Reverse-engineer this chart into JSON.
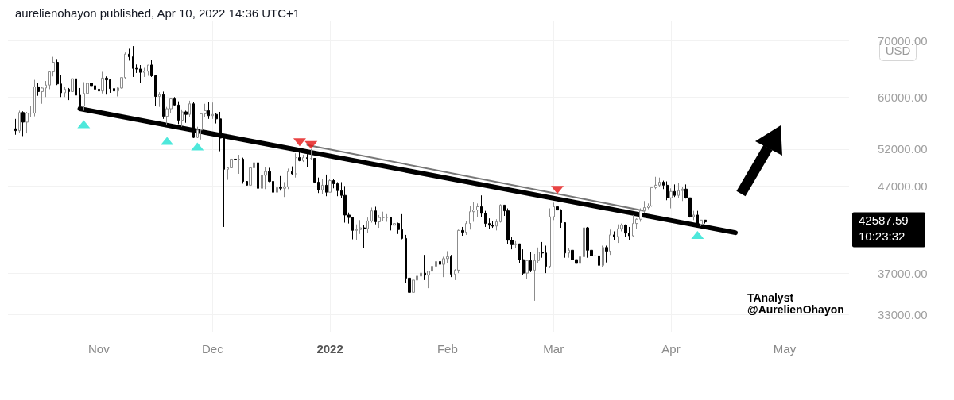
{
  "chart_data": {
    "type": "candlestick",
    "title": "aurelienohayon published, Apr 10, 2022 14:36 UTC+1",
    "ylabel": "USD",
    "annotations": [
      "TAnalyst",
      "@AurelienOhayon",
      "42587.59",
      "10:23:32"
    ],
    "log": "y",
    "grid": true,
    "xlim": [
      "2021-10-08",
      "2022-05-18"
    ],
    "xticks": [
      {
        "value": "2021-11-01",
        "label": "Nov"
      },
      {
        "value": "2021-12-01",
        "label": "Dec"
      },
      {
        "value": "2022-01-01",
        "label": "2022"
      },
      {
        "value": "2022-02-01",
        "label": "Feb"
      },
      {
        "value": "2022-03-01",
        "label": "Mar"
      },
      {
        "value": "2022-04-01",
        "label": "Apr"
      },
      {
        "value": "2022-05-01",
        "label": "May"
      }
    ],
    "ylim": [
      31500,
      74000
    ],
    "yticks": [
      {
        "value": 33000,
        "label": "33000.00"
      },
      {
        "value": 37000,
        "label": "37000.00"
      },
      {
        "value": 47000,
        "label": "47000.00"
      },
      {
        "value": 52000,
        "label": "52000.00"
      },
      {
        "value": 60000,
        "label": "60000.00"
      },
      {
        "value": 70000,
        "label": "70000.00"
      }
    ],
    "series": [
      {
        "x": [
          "2021-10-10",
          "2021-10-11",
          "2021-10-12",
          "2021-10-13",
          "2021-10-14",
          "2021-10-15",
          "2021-10-16",
          "2021-10-17",
          "2021-10-18",
          "2021-10-19",
          "2021-10-20",
          "2021-10-21",
          "2021-10-22",
          "2021-10-23",
          "2021-10-24",
          "2021-10-25",
          "2021-10-26",
          "2021-10-27",
          "2021-10-28",
          "2021-10-29",
          "2021-10-30",
          "2021-10-31",
          "2021-11-01",
          "2021-11-02",
          "2021-11-03",
          "2021-11-04",
          "2021-11-05",
          "2021-11-06",
          "2021-11-07",
          "2021-11-08",
          "2021-11-09",
          "2021-11-10",
          "2021-11-11",
          "2021-11-12",
          "2021-11-13",
          "2021-11-14",
          "2021-11-15",
          "2021-11-16",
          "2021-11-17",
          "2021-11-18",
          "2021-11-19",
          "2021-11-20",
          "2021-11-21",
          "2021-11-22",
          "2021-11-23",
          "2021-11-24",
          "2021-11-25",
          "2021-11-26",
          "2021-11-27",
          "2021-11-28",
          "2021-11-29",
          "2021-11-30",
          "2021-12-01",
          "2021-12-02",
          "2021-12-03",
          "2021-12-04",
          "2021-12-05",
          "2021-12-06",
          "2021-12-07",
          "2021-12-08",
          "2021-12-09",
          "2021-12-10",
          "2021-12-11",
          "2021-12-12",
          "2021-12-13",
          "2021-12-14",
          "2021-12-15",
          "2021-12-16",
          "2021-12-17",
          "2021-12-18",
          "2021-12-19",
          "2021-12-20",
          "2021-12-21",
          "2021-12-22",
          "2021-12-23",
          "2021-12-24",
          "2021-12-25",
          "2021-12-26",
          "2021-12-27",
          "2021-12-28",
          "2021-12-29",
          "2021-12-30",
          "2021-12-31",
          "2022-01-01",
          "2022-01-02",
          "2022-01-03",
          "2022-01-04",
          "2022-01-05",
          "2022-01-06",
          "2022-01-07",
          "2022-01-08",
          "2022-01-09",
          "2022-01-10",
          "2022-01-11",
          "2022-01-12",
          "2022-01-13",
          "2022-01-14",
          "2022-01-15",
          "2022-01-16",
          "2022-01-17",
          "2022-01-18",
          "2022-01-19",
          "2022-01-20",
          "2022-01-21",
          "2022-01-22",
          "2022-01-23",
          "2022-01-24",
          "2022-01-25",
          "2022-01-26",
          "2022-01-27",
          "2022-01-28",
          "2022-01-29",
          "2022-01-30",
          "2022-01-31",
          "2022-02-01",
          "2022-02-02",
          "2022-02-03",
          "2022-02-04",
          "2022-02-05",
          "2022-02-06",
          "2022-02-07",
          "2022-02-08",
          "2022-02-09",
          "2022-02-10",
          "2022-02-11",
          "2022-02-12",
          "2022-02-13",
          "2022-02-14",
          "2022-02-15",
          "2022-02-16",
          "2022-02-17",
          "2022-02-18",
          "2022-02-19",
          "2022-02-20",
          "2022-02-21",
          "2022-02-22",
          "2022-02-23",
          "2022-02-24",
          "2022-02-25",
          "2022-02-26",
          "2022-02-27",
          "2022-02-28",
          "2022-03-01",
          "2022-03-02",
          "2022-03-03",
          "2022-03-04",
          "2022-03-05",
          "2022-03-06",
          "2022-03-07",
          "2022-03-08",
          "2022-03-09",
          "2022-03-10",
          "2022-03-11",
          "2022-03-12",
          "2022-03-13",
          "2022-03-14",
          "2022-03-15",
          "2022-03-16",
          "2022-03-17",
          "2022-03-18",
          "2022-03-19",
          "2022-03-20",
          "2022-03-21",
          "2022-03-22",
          "2022-03-23",
          "2022-03-24",
          "2022-03-25",
          "2022-03-26",
          "2022-03-27",
          "2022-03-28",
          "2022-03-29",
          "2022-03-30",
          "2022-03-31",
          "2022-04-01",
          "2022-04-02",
          "2022-04-03",
          "2022-04-04",
          "2022-04-05",
          "2022-04-06",
          "2022-04-07",
          "2022-04-08",
          "2022-04-09",
          "2022-04-10"
        ],
        "ohlc": [
          [
            55000,
            56500,
            54100,
            54700
          ],
          [
            54700,
            57800,
            54400,
            57500
          ],
          [
            57500,
            57700,
            53900,
            56000
          ],
          [
            56000,
            57600,
            54300,
            57400
          ],
          [
            57400,
            58500,
            56800,
            57400
          ],
          [
            57400,
            62900,
            56900,
            61700
          ],
          [
            61700,
            62300,
            60200,
            60900
          ],
          [
            60900,
            61700,
            58900,
            61500
          ],
          [
            61500,
            62700,
            60000,
            62000
          ],
          [
            62000,
            64500,
            61300,
            64300
          ],
          [
            64300,
            67000,
            63500,
            66000
          ],
          [
            66000,
            66600,
            62000,
            62200
          ],
          [
            62200,
            63700,
            60000,
            60700
          ],
          [
            60700,
            61700,
            60000,
            61300
          ],
          [
            61300,
            61500,
            59500,
            60900
          ],
          [
            60900,
            63700,
            60700,
            63100
          ],
          [
            63100,
            63300,
            59900,
            60300
          ],
          [
            60300,
            61500,
            58000,
            58500
          ],
          [
            58500,
            62500,
            57800,
            60600
          ],
          [
            60600,
            62900,
            60200,
            62300
          ],
          [
            62300,
            62400,
            60700,
            61900
          ],
          [
            61900,
            62400,
            60000,
            61300
          ],
          [
            61300,
            62400,
            59400,
            61000
          ],
          [
            61000,
            64300,
            60600,
            63200
          ],
          [
            63200,
            63500,
            60400,
            62900
          ],
          [
            62900,
            63100,
            60700,
            61400
          ],
          [
            61400,
            62600,
            60700,
            61000
          ],
          [
            61000,
            61600,
            60100,
            61500
          ],
          [
            61500,
            63300,
            61400,
            63300
          ],
          [
            63300,
            67800,
            63100,
            67500
          ],
          [
            67500,
            68500,
            66300,
            67000
          ],
          [
            67000,
            69000,
            63400,
            64900
          ],
          [
            64900,
            65600,
            64100,
            64800
          ],
          [
            64800,
            65500,
            62300,
            64200
          ],
          [
            64200,
            65000,
            63400,
            64400
          ],
          [
            64400,
            65500,
            63600,
            65500
          ],
          [
            65500,
            66400,
            63400,
            63600
          ],
          [
            63600,
            63600,
            58600,
            60100
          ],
          [
            60100,
            60800,
            58400,
            60400
          ],
          [
            60400,
            60900,
            56500,
            56900
          ],
          [
            56900,
            58400,
            55600,
            58100
          ],
          [
            58100,
            59800,
            57400,
            59700
          ],
          [
            59700,
            60000,
            58500,
            58700
          ],
          [
            58700,
            59300,
            55700,
            56300
          ],
          [
            56300,
            58000,
            55300,
            57600
          ],
          [
            57600,
            57800,
            55900,
            57200
          ],
          [
            57200,
            59400,
            56800,
            58900
          ],
          [
            58900,
            59200,
            53600,
            53700
          ],
          [
            53700,
            55300,
            53600,
            54800
          ],
          [
            54800,
            57400,
            53400,
            57300
          ],
          [
            57300,
            58900,
            56800,
            57800
          ],
          [
            57800,
            59200,
            56500,
            57000
          ],
          [
            57000,
            59100,
            56500,
            57200
          ],
          [
            57200,
            57400,
            55800,
            56500
          ],
          [
            56500,
            57600,
            51700,
            53600
          ],
          [
            53600,
            53900,
            42000,
            49200
          ],
          [
            49200,
            49500,
            47800,
            49400
          ],
          [
            49400,
            50900,
            47100,
            50600
          ],
          [
            50600,
            51900,
            50000,
            50500
          ],
          [
            50500,
            51200,
            48600,
            50600
          ],
          [
            50600,
            50800,
            47300,
            47600
          ],
          [
            47600,
            50100,
            47000,
            47100
          ],
          [
            47100,
            49500,
            46900,
            49400
          ],
          [
            49400,
            50800,
            48600,
            50100
          ],
          [
            50100,
            50200,
            45800,
            46700
          ],
          [
            46700,
            48600,
            46600,
            48400
          ],
          [
            48400,
            49500,
            46600,
            48900
          ],
          [
            48900,
            49400,
            47500,
            47600
          ],
          [
            47600,
            47900,
            45500,
            46200
          ],
          [
            46200,
            47300,
            45600,
            46800
          ],
          [
            46800,
            48300,
            46400,
            46700
          ],
          [
            46700,
            47500,
            45600,
            46900
          ],
          [
            46900,
            49300,
            46600,
            48900
          ],
          [
            48900,
            49600,
            48500,
            48600
          ],
          [
            48600,
            51400,
            48100,
            50800
          ],
          [
            50800,
            51800,
            50300,
            50400
          ],
          [
            50400,
            51200,
            50200,
            50800
          ],
          [
            50800,
            51300,
            49500,
            50700
          ],
          [
            50700,
            52000,
            50500,
            50700
          ],
          [
            50700,
            50700,
            47400,
            47500
          ],
          [
            47500,
            48100,
            46100,
            46500
          ],
          [
            46500,
            47900,
            46000,
            47100
          ],
          [
            47100,
            48500,
            45700,
            46200
          ],
          [
            46200,
            47900,
            46200,
            47700
          ],
          [
            47700,
            47900,
            46700,
            47300
          ],
          [
            47300,
            47500,
            45700,
            46400
          ],
          [
            46400,
            47500,
            45500,
            45800
          ],
          [
            45800,
            47000,
            42500,
            43400
          ],
          [
            43400,
            43700,
            42400,
            43100
          ],
          [
            43100,
            43100,
            40600,
            41600
          ],
          [
            41600,
            42300,
            40500,
            41700
          ],
          [
            41700,
            42800,
            41200,
            41900
          ],
          [
            41900,
            42200,
            39600,
            41800
          ],
          [
            41800,
            43100,
            41300,
            42700
          ],
          [
            42700,
            44300,
            42500,
            43900
          ],
          [
            43900,
            44400,
            42300,
            42600
          ],
          [
            42600,
            43400,
            41900,
            43100
          ],
          [
            43100,
            43800,
            42700,
            43100
          ],
          [
            43100,
            43500,
            42600,
            43100
          ],
          [
            43100,
            43200,
            41600,
            42200
          ],
          [
            42200,
            42700,
            41300,
            42400
          ],
          [
            42400,
            42500,
            41200,
            41700
          ],
          [
            41700,
            43500,
            40600,
            40700
          ],
          [
            40700,
            41100,
            36000,
            36500
          ],
          [
            36500,
            36800,
            34000,
            35100
          ],
          [
            35100,
            36500,
            34600,
            36300
          ],
          [
            36300,
            37500,
            33000,
            36700
          ],
          [
            36700,
            37600,
            36000,
            37000
          ],
          [
            37000,
            38900,
            36300,
            36800
          ],
          [
            36800,
            37200,
            35500,
            37200
          ],
          [
            37200,
            38000,
            36200,
            37700
          ],
          [
            37700,
            38700,
            37400,
            38200
          ],
          [
            38200,
            38400,
            37400,
            37900
          ],
          [
            37900,
            38700,
            36600,
            38500
          ],
          [
            38500,
            39300,
            38000,
            38700
          ],
          [
            38700,
            38900,
            36600,
            36900
          ],
          [
            36900,
            37400,
            36300,
            37300
          ],
          [
            37300,
            41700,
            37000,
            41600
          ],
          [
            41600,
            42000,
            41000,
            41400
          ],
          [
            41400,
            42700,
            41100,
            42400
          ],
          [
            42400,
            44500,
            41700,
            43800
          ],
          [
            43800,
            45000,
            42600,
            44000
          ],
          [
            44000,
            44800,
            43200,
            44400
          ],
          [
            44400,
            45800,
            43200,
            43600
          ],
          [
            43600,
            43900,
            42000,
            42400
          ],
          [
            42400,
            43000,
            41800,
            42200
          ],
          [
            42200,
            42700,
            41900,
            42100
          ],
          [
            42100,
            42900,
            41600,
            42600
          ],
          [
            42600,
            44700,
            42500,
            44600
          ],
          [
            44600,
            44600,
            43300,
            43900
          ],
          [
            43900,
            44200,
            40100,
            40500
          ],
          [
            40500,
            40900,
            39500,
            40000
          ],
          [
            40000,
            40400,
            39600,
            40100
          ],
          [
            40100,
            40100,
            38000,
            38400
          ],
          [
            38400,
            39500,
            36800,
            37000
          ],
          [
            37000,
            38400,
            36400,
            38300
          ],
          [
            38300,
            39200,
            37100,
            37300
          ],
          [
            37300,
            39000,
            34300,
            38300
          ],
          [
            38300,
            39700,
            38000,
            39200
          ],
          [
            39200,
            40300,
            38600,
            39100
          ],
          [
            39100,
            39900,
            37000,
            37700
          ],
          [
            37700,
            44200,
            37500,
            43200
          ],
          [
            43200,
            44900,
            42800,
            44400
          ],
          [
            44400,
            45400,
            43400,
            44000
          ],
          [
            44000,
            44100,
            41900,
            42500
          ],
          [
            42500,
            42500,
            38600,
            39100
          ],
          [
            39100,
            39600,
            38600,
            39400
          ],
          [
            39400,
            39600,
            38100,
            38400
          ],
          [
            38400,
            39500,
            37200,
            38000
          ],
          [
            38000,
            39400,
            37900,
            38700
          ],
          [
            38700,
            42600,
            38700,
            41900
          ],
          [
            41900,
            42000,
            38600,
            39400
          ],
          [
            39400,
            40200,
            38200,
            38800
          ],
          [
            38800,
            39500,
            38700,
            38800
          ],
          [
            38800,
            39300,
            37600,
            37800
          ],
          [
            37800,
            39900,
            37600,
            39700
          ],
          [
            39700,
            39900,
            38100,
            39300
          ],
          [
            39300,
            41700,
            38900,
            41100
          ],
          [
            41100,
            41500,
            40500,
            40900
          ],
          [
            40900,
            42300,
            40200,
            41800
          ],
          [
            41800,
            42400,
            41500,
            42200
          ],
          [
            42200,
            42300,
            40900,
            41300
          ],
          [
            41300,
            42000,
            40500,
            41000
          ],
          [
            41000,
            43400,
            40900,
            42400
          ],
          [
            42400,
            43000,
            41800,
            42900
          ],
          [
            42900,
            44200,
            42600,
            43900
          ],
          [
            43900,
            45100,
            43600,
            44300
          ],
          [
            44300,
            44800,
            44100,
            44500
          ],
          [
            44500,
            46900,
            44400,
            46800
          ],
          [
            46800,
            48200,
            46600,
            47100
          ],
          [
            47100,
            48100,
            46900,
            47500
          ],
          [
            47500,
            47700,
            46600,
            47100
          ],
          [
            47100,
            47600,
            45200,
            45500
          ],
          [
            45500,
            46700,
            44200,
            46300
          ],
          [
            46300,
            47200,
            45600,
            45800
          ],
          [
            45800,
            47400,
            45500,
            46400
          ],
          [
            46400,
            46900,
            45100,
            46600
          ],
          [
            46600,
            47200,
            45400,
            45500
          ],
          [
            45500,
            45500,
            43100,
            43200
          ],
          [
            43200,
            43900,
            42800,
            43400
          ],
          [
            43400,
            43900,
            42200,
            42300
          ],
          [
            42300,
            42800,
            42100,
            42800
          ],
          [
            42800,
            42800,
            42400,
            42587.59
          ]
        ]
      },
      {
        "type": "line",
        "color": "#000000",
        "x": [
          "2021-10-27",
          "2022-04-18"
        ],
        "values": [
          58100,
          41350
        ]
      },
      {
        "type": "line",
        "color": "#777777",
        "x": [
          "2021-12-26",
          "2022-03-25"
        ],
        "values": [
          52600,
          43900
        ]
      },
      {
        "type": "scatter",
        "color": "#22e2d2",
        "marker": "triangle",
        "x": [
          "2021-10-28",
          "2021-11-19",
          "2021-11-27",
          "2022-04-08"
        ],
        "values": [
          55700,
          53200,
          52400,
          41100
        ]
      },
      {
        "type": "scatter",
        "color": "#e51414",
        "marker": "triangle-down",
        "x": [
          "2021-12-24",
          "2021-12-27",
          "2022-03-02"
        ],
        "values": [
          53000,
          52600,
          46500
        ]
      }
    ]
  }
}
